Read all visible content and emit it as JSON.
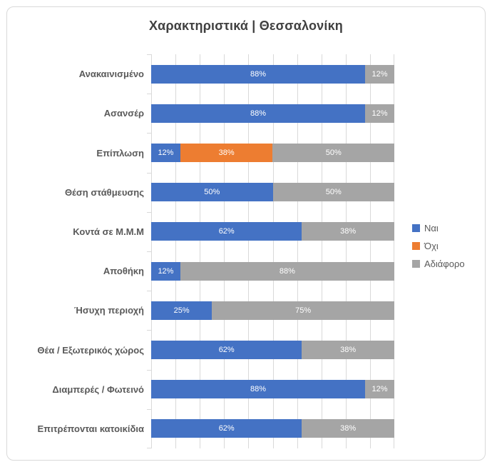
{
  "title": "Χαρακτηριστικά | Θεσσαλονίκη",
  "colors": {
    "yes": "#4472C4",
    "no": "#ED7D31",
    "neutral": "#A5A5A5",
    "grid": "#D9D9D9",
    "border": "#D9D9D9",
    "title_text": "#404040",
    "label_text": "#595959",
    "data_label_text": "#FFFFFF"
  },
  "legend": {
    "position": "right-middle",
    "items": [
      {
        "label": "Ναι",
        "color": "#4472C4"
      },
      {
        "label": "Όχι",
        "color": "#ED7D31"
      },
      {
        "label": "Αδιάφορο",
        "color": "#A5A5A5"
      }
    ]
  },
  "chart_data": {
    "type": "bar",
    "orientation": "horizontal-stacked",
    "title": "Χαρακτηριστικά | Θεσσαλονίκη",
    "categories": [
      "Ανακαινισμένο",
      "Ασανσέρ",
      "Επίπλωση",
      "Θέση στάθμευσης",
      "Κοντά σε Μ.Μ.Μ",
      "Αποθήκη",
      "Ήσυχη περιοχή",
      "Θέα / Εξωτερικός χώρος",
      "Διαμπερές / Φωτεινό",
      "Επιτρέποvται κατοικίδια"
    ],
    "series": [
      {
        "name": "Ναι",
        "color": "#4472C4",
        "values": [
          88,
          88,
          12,
          50,
          62,
          12,
          25,
          62,
          88,
          62
        ]
      },
      {
        "name": "Όχι",
        "color": "#ED7D31",
        "values": [
          0,
          0,
          38,
          0,
          0,
          0,
          0,
          0,
          0,
          0
        ]
      },
      {
        "name": "Αδιάφορο",
        "color": "#A5A5A5",
        "values": [
          12,
          12,
          50,
          50,
          38,
          88,
          75,
          38,
          12,
          38
        ]
      }
    ],
    "xlim": [
      0,
      100
    ],
    "gridlines": "vertical every 10%",
    "data_label_format": "percent",
    "legend_position": "right-middle"
  }
}
